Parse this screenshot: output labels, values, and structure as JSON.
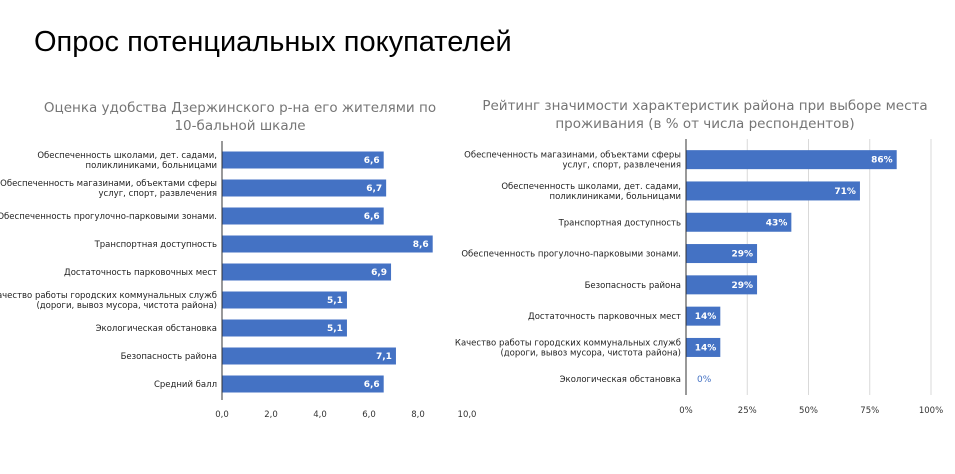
{
  "page_title": "Опрос потенциальных покупателей",
  "chart_data": [
    {
      "type": "bar",
      "orientation": "horizontal",
      "title": "Оценка удобства Дзержинского р-на его жителями по 10-бальной шкале",
      "categories": [
        [
          "Обеспеченность школами, дет. садами,",
          "поликлиниками, больницами"
        ],
        [
          "Обеспеченность магазинами, объектами сферы",
          "услуг, спорт, развлечения"
        ],
        [
          "Обеспеченность прогулочно-парковыми зонами."
        ],
        [
          "Транспортная доступность"
        ],
        [
          "Достаточность парковочных мест"
        ],
        [
          "Качество работы городских коммунальных служб",
          "(дороги, вывоз мусора, чистота района)"
        ],
        [
          "Экологическая обстановка"
        ],
        [
          "Безопасность района"
        ],
        [
          "Средний балл"
        ]
      ],
      "values": [
        6.6,
        6.7,
        6.6,
        8.6,
        6.9,
        5.1,
        5.1,
        7.1,
        6.6
      ],
      "value_labels": [
        "6,6",
        "6,7",
        "6,6",
        "8,6",
        "6,9",
        "5,1",
        "5,1",
        "7,1",
        "6,6"
      ],
      "xlim": [
        0,
        10
      ],
      "ticks": [
        "0,0",
        "2,0",
        "4,0",
        "6,0",
        "8,0",
        "10,0"
      ],
      "grid": false,
      "color": "#4472c4"
    },
    {
      "type": "bar",
      "orientation": "horizontal",
      "title": "Рейтинг значимости характеристик района при выборе места проживания (в % от числа респондентов)",
      "categories": [
        [
          "Обеспеченность магазинами, объектами сферы",
          "услуг, спорт, развлечения"
        ],
        [
          "Обеспеченность школами, дет. садами,",
          "поликлиниками, больницами"
        ],
        [
          "Транспортная доступность"
        ],
        [
          "Обеспеченность прогулочно-парковыми зонами."
        ],
        [
          "Безопасность района"
        ],
        [
          "Достаточность парковочных мест"
        ],
        [
          "Качество работы городских коммунальных служб",
          "(дороги, вывоз мусора, чистота района)"
        ],
        [
          "Экологическая обстановка"
        ]
      ],
      "values": [
        86,
        71,
        43,
        29,
        29,
        14,
        14,
        0
      ],
      "value_labels": [
        "86%",
        "71%",
        "43%",
        "29%",
        "29%",
        "14%",
        "14%",
        "0%"
      ],
      "xlim": [
        0,
        100
      ],
      "ticks": [
        "0%",
        "25%",
        "50%",
        "75%",
        "100%"
      ],
      "grid": true,
      "color": "#4472c4"
    }
  ]
}
